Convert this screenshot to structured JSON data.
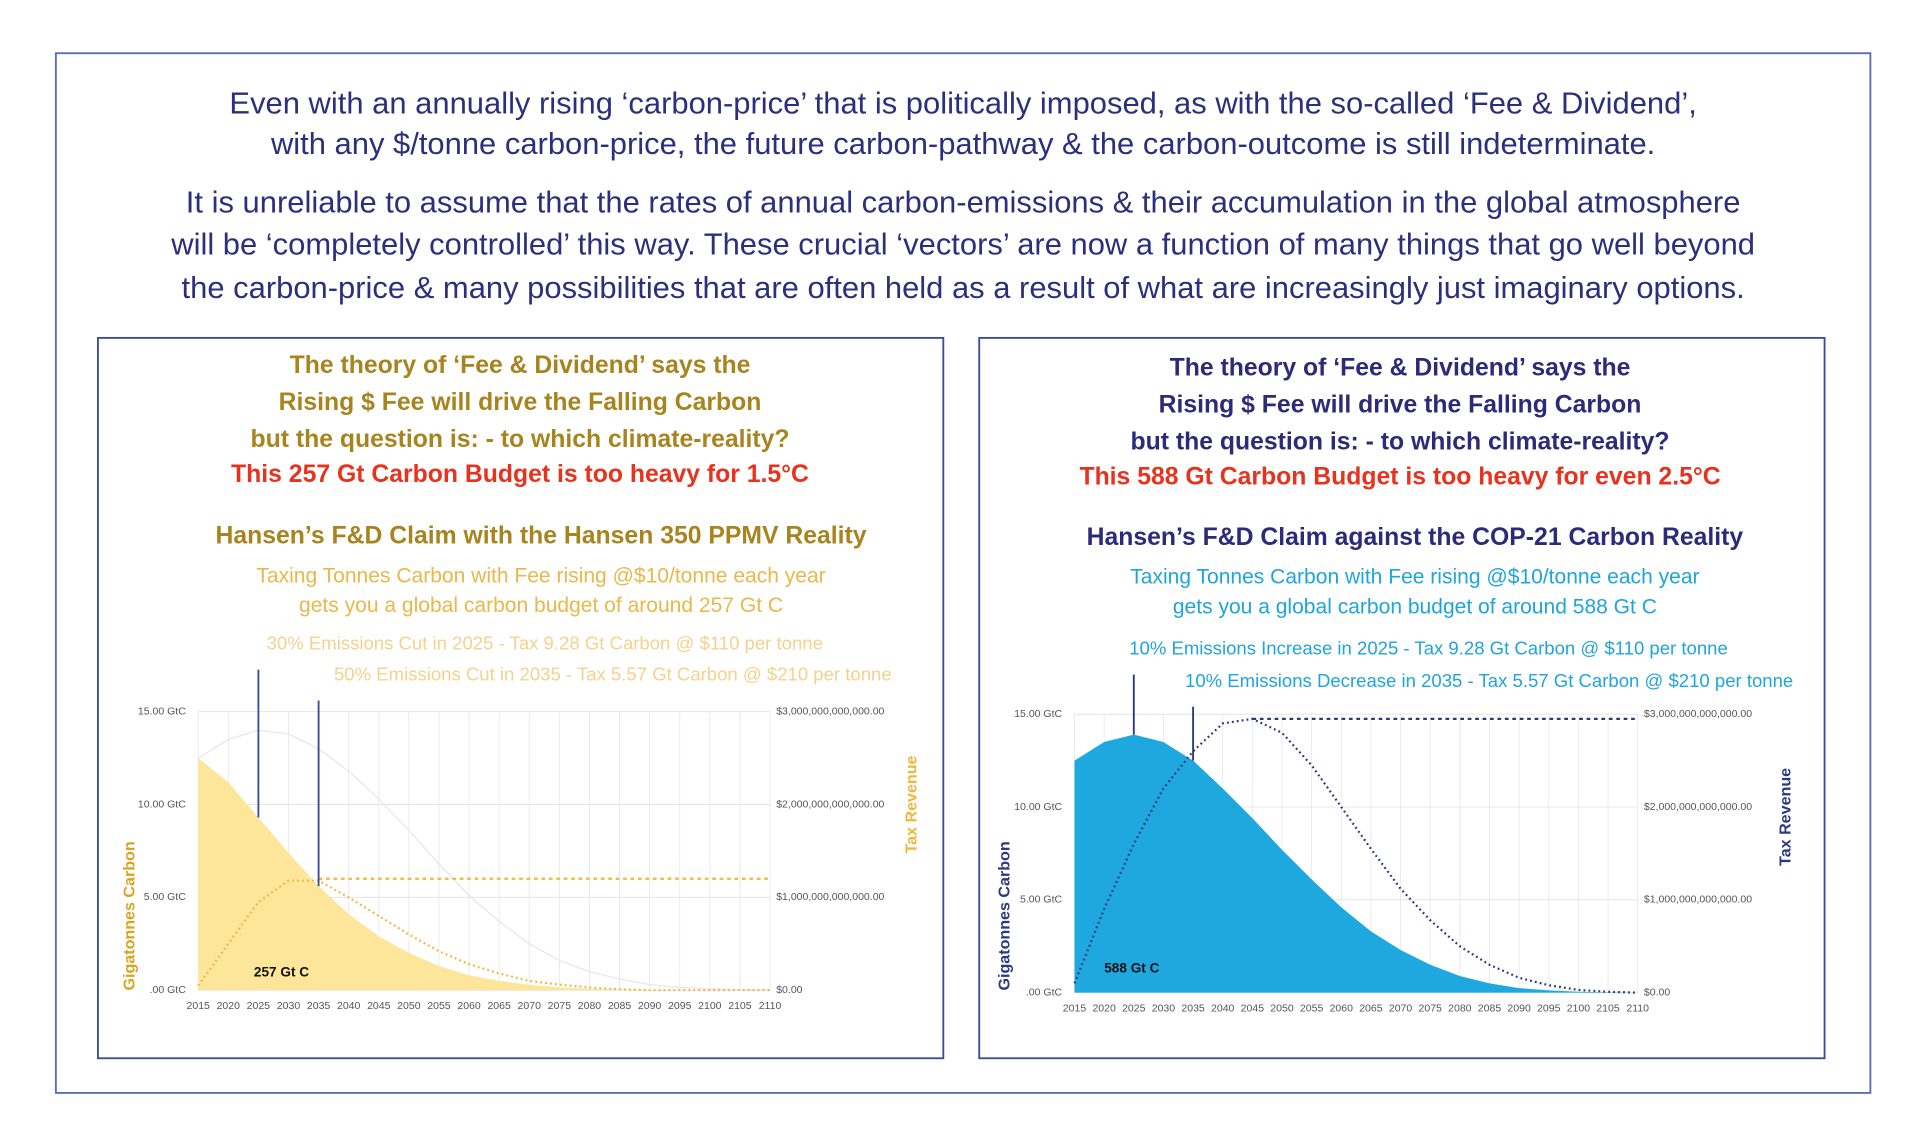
{
  "intro": [
    [
      "Even with an annually rising ‘carbon-price’ that is politically imposed, as with the so-called ‘Fee & Dividend’,",
      "with any $/tonne carbon-price, the future carbon-pathway & the carbon-outcome is still indeterminate."
    ],
    [
      "It is unreliable to assume that the rates of annual carbon-emissions & their accumulation in the global atmosphere",
      "will be ‘completely controlled’ this way. These crucial ‘vectors’ are now a function of many things that go well beyond",
      "the carbon-price & many possibilities that are often held as a result of what are increasingly just imaginary options."
    ]
  ],
  "chart_data": [
    {
      "type": "area",
      "headings": [
        "The theory of ‘Fee & Dividend’  says the",
        "Rising $ Fee will drive the Falling Carbon",
        "but the question is: - to which climate-reality?"
      ],
      "highlight": "This 257 Gt Carbon Budget is too heavy for 1.5°C",
      "title": "Hansen’s F&D Claim with the Hansen 350 PPMV Reality",
      "subtitle": [
        "Taxing Tonnes Carbon with Fee rising @$10/tonne each year",
        "gets you a global carbon budget of around 257 Gt C"
      ],
      "annotations": [
        {
          "text": "30% Emissions Cut in 2025 - Tax 9.28 Gt Carbon @ $110 per tonne",
          "x": 2025
        },
        {
          "text": "50% Emissions Cut in 2035 - Tax 5.57 Gt Carbon @ $210 per tonne",
          "x": 2035
        }
      ],
      "budget_label": "257 Gt C",
      "ylabel": "Gigatonnes Carbon",
      "y2label": "Tax Revenue",
      "x": [
        2015,
        2020,
        2025,
        2030,
        2035,
        2040,
        2045,
        2050,
        2055,
        2060,
        2065,
        2070,
        2075,
        2080,
        2085,
        2090,
        2095,
        2100,
        2105,
        2110
      ],
      "xlim": [
        2015,
        2110
      ],
      "xticks": [
        2015,
        2020,
        2025,
        2030,
        2035,
        2040,
        2045,
        2050,
        2055,
        2060,
        2065,
        2070,
        2075,
        2080,
        2085,
        2090,
        2095,
        2100,
        2105,
        2110
      ],
      "ylim": [
        0,
        15
      ],
      "yticks": [
        {
          "value": 0,
          "label": ".00 GtC"
        },
        {
          "value": 5,
          "label": "5.00 GtC"
        },
        {
          "value": 10,
          "label": "10.00 GtC"
        },
        {
          "value": 15,
          "label": "15.00 GtC"
        }
      ],
      "y2lim": [
        0,
        3000000000000
      ],
      "y2ticks": [
        {
          "value": 0,
          "label": "$0.00"
        },
        {
          "value": 1000000000000,
          "label": "$1,000,000,000,000.00"
        },
        {
          "value": 2000000000000,
          "label": "$2,000,000,000,000.00"
        },
        {
          "value": 3000000000000,
          "label": "$3,000,000,000,000.00"
        }
      ],
      "grid": true,
      "colors": {
        "heading": "#a8841f",
        "highlight": "#e8321e",
        "subtitle": "#e8b84a",
        "annotation": "#f4d28e",
        "ylabel": "#d9a520",
        "y2label": "#f0b73c",
        "marker": "#3a4d9a"
      },
      "series": [
        {
          "style": "area",
          "color": "#fde59a",
          "values": [
            12.5,
            11.2,
            9.3,
            7.4,
            5.6,
            4.1,
            2.9,
            2.0,
            1.3,
            0.8,
            0.5,
            0.3,
            0.15,
            0.08,
            0.04,
            0.02,
            0.01,
            0,
            0,
            0
          ]
        },
        {
          "style": "line",
          "color": "#e6e6ee",
          "values": [
            12.5,
            13.5,
            14,
            13.8,
            13,
            11.8,
            10.3,
            8.6,
            6.8,
            5.1,
            3.7,
            2.5,
            1.6,
            1.0,
            0.6,
            0.3,
            0.15,
            0.08,
            0.04,
            0.02
          ]
        },
        {
          "style": "dotted",
          "color": "#f0b73c",
          "axis": "y2",
          "values": [
            50000000000,
            500000000000,
            950000000000,
            1180000000000,
            1180000000000,
            1000000000000,
            800000000000,
            600000000000,
            420000000000,
            280000000000,
            180000000000,
            100000000000,
            60000000000,
            30000000000,
            10000000000,
            0,
            0,
            0,
            0,
            0
          ]
        },
        {
          "style": "dashed",
          "color": "#f0b73c",
          "axis": "y2",
          "values": [
            null,
            null,
            null,
            null,
            1200000000000,
            1200000000000,
            1200000000000,
            1200000000000,
            1200000000000,
            1200000000000,
            1200000000000,
            1200000000000,
            1200000000000,
            1200000000000,
            1200000000000,
            1200000000000,
            1200000000000,
            1200000000000,
            1200000000000,
            1200000000000
          ]
        }
      ]
    },
    {
      "type": "area",
      "headings": [
        "The theory of ‘Fee & Dividend’  says the",
        "Rising $ Fee will drive the Falling Carbon",
        "but the question is: - to which climate-reality?"
      ],
      "highlight": "This 588 Gt Carbon Budget is too heavy for even 2.5°C",
      "title": "Hansen’s F&D Claim against the COP-21 Carbon Reality",
      "subtitle": [
        "Taxing Tonnes Carbon with Fee rising @$10/tonne each year",
        "gets you a global carbon budget of around 588 Gt C"
      ],
      "annotations": [
        {
          "text": "10% Emissions Increase in 2025 - Tax 9.28 Gt Carbon @ $110 per tonne",
          "x": 2025
        },
        {
          "text": "10% Emissions Decrease in 2035 - Tax 5.57 Gt Carbon @ $210 per tonne",
          "x": 2035
        }
      ],
      "budget_label": "588 Gt C",
      "ylabel": "Gigatonnes Carbon",
      "y2label": "Tax Revenue",
      "x": [
        2015,
        2020,
        2025,
        2030,
        2035,
        2040,
        2045,
        2050,
        2055,
        2060,
        2065,
        2070,
        2075,
        2080,
        2085,
        2090,
        2095,
        2100,
        2105,
        2110
      ],
      "xlim": [
        2015,
        2110
      ],
      "xticks": [
        2015,
        2020,
        2025,
        2030,
        2035,
        2040,
        2045,
        2050,
        2055,
        2060,
        2065,
        2070,
        2075,
        2080,
        2085,
        2090,
        2095,
        2100,
        2105,
        2110
      ],
      "ylim": [
        0,
        15
      ],
      "yticks": [
        {
          "value": 0,
          "label": ".00 GtC"
        },
        {
          "value": 5,
          "label": "5.00 GtC"
        },
        {
          "value": 10,
          "label": "10.00 GtC"
        },
        {
          "value": 15,
          "label": "15.00 GtC"
        }
      ],
      "y2lim": [
        0,
        3000000000000
      ],
      "y2ticks": [
        {
          "value": 0,
          "label": "$0.00"
        },
        {
          "value": 1000000000000,
          "label": "$1,000,000,000,000.00"
        },
        {
          "value": 2000000000000,
          "label": "$2,000,000,000,000.00"
        },
        {
          "value": 3000000000000,
          "label": "$3,000,000,000,000.00"
        }
      ],
      "grid": true,
      "colors": {
        "heading": "#2d2a7a",
        "highlight": "#e8321e",
        "subtitle": "#1fa5dc",
        "annotation": "#1fa5dc",
        "ylabel": "#2b3a80",
        "y2label": "#2b3a80",
        "marker": "#2b3a80"
      },
      "series": [
        {
          "style": "area",
          "color": "#1fa8e0",
          "values": [
            12.5,
            13.5,
            13.9,
            13.5,
            12.5,
            11.0,
            9.4,
            7.7,
            6.1,
            4.6,
            3.3,
            2.3,
            1.5,
            0.9,
            0.5,
            0.25,
            0.12,
            0.05,
            0.02,
            0
          ]
        },
        {
          "style": "dotted",
          "color": "#2b3a80",
          "axis": "y2",
          "values": [
            100000000000,
            900000000000,
            1600000000000,
            2200000000000,
            2600000000000,
            2900000000000,
            2950000000000,
            2800000000000,
            2450000000000,
            2000000000000,
            1550000000000,
            1120000000000,
            780000000000,
            500000000000,
            300000000000,
            160000000000,
            80000000000,
            30000000000,
            10000000000,
            0
          ]
        },
        {
          "style": "dashed",
          "color": "#2b3a80",
          "axis": "y2",
          "values": [
            null,
            null,
            null,
            null,
            null,
            null,
            2950000000000,
            2950000000000,
            2950000000000,
            2950000000000,
            2950000000000,
            2950000000000,
            2950000000000,
            2950000000000,
            2950000000000,
            2950000000000,
            2950000000000,
            2950000000000,
            2950000000000,
            2950000000000
          ]
        }
      ]
    }
  ]
}
